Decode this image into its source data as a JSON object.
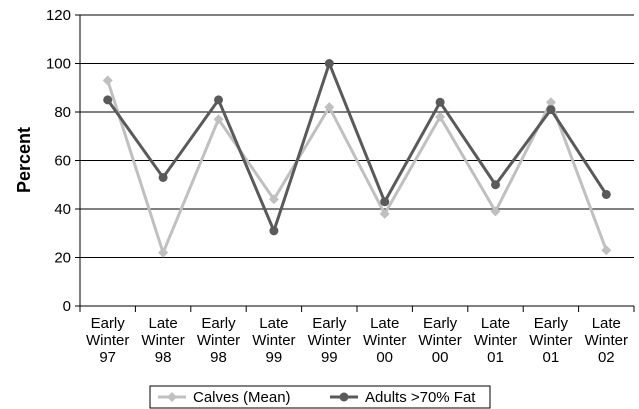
{
  "chart_data": {
    "type": "line",
    "categories": [
      [
        "Early",
        "Winter",
        "97"
      ],
      [
        "Late",
        "Winter",
        "98"
      ],
      [
        "Early",
        "Winter",
        "98"
      ],
      [
        "Late",
        "Winter",
        "99"
      ],
      [
        "Early",
        "Winter",
        "99"
      ],
      [
        "Late",
        "Winter",
        "00"
      ],
      [
        "Early",
        "Winter",
        "00"
      ],
      [
        "Late",
        "Winter",
        "01"
      ],
      [
        "Early",
        "Winter",
        "01"
      ],
      [
        "Late",
        "Winter",
        "02"
      ]
    ],
    "series": [
      {
        "name": "Calves (Mean)",
        "color": "#c0c0c0",
        "marker": "diamond",
        "values": [
          93,
          22,
          77,
          44,
          82,
          38,
          78,
          39,
          84,
          23
        ]
      },
      {
        "name": "Adults >70% Fat",
        "color": "#5a5a5a",
        "marker": "circle",
        "values": [
          85,
          53,
          85,
          31,
          100,
          43,
          84,
          50,
          81,
          46
        ]
      }
    ],
    "title": "",
    "xlabel": "",
    "ylabel": "Percent",
    "ylim": [
      0,
      120
    ],
    "yticks": [
      0,
      20,
      40,
      60,
      80,
      100,
      120
    ],
    "grid": "horizontal",
    "legend": "bottom"
  }
}
